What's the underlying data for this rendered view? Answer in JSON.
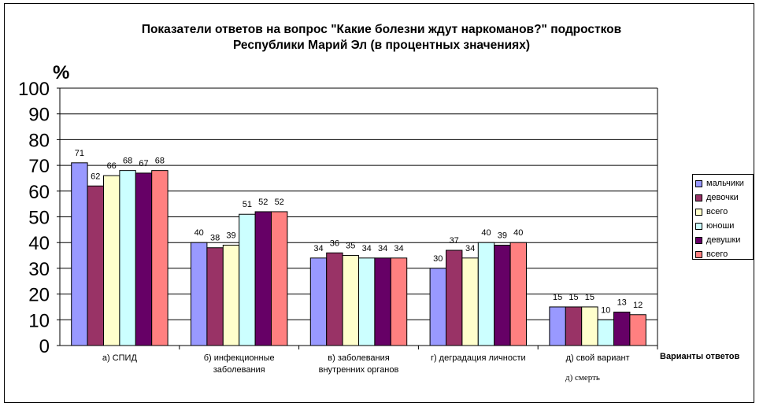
{
  "chart_data": {
    "type": "bar",
    "title_lines": [
      "Показатели ответов на вопрос \"Какие болезни ждут наркоманов?\" подростков",
      "Республики Марий Эл (в процентных значениях)"
    ],
    "ylabel": "%",
    "xlabel": "Варианты ответов",
    "ylim": [
      0,
      100
    ],
    "yticks": [
      "0",
      "10",
      "20",
      "30",
      "40",
      "50",
      "60",
      "70",
      "80",
      "90",
      "100"
    ],
    "grid": true,
    "legend_position": "right",
    "categories": [
      [
        "а) СПИД"
      ],
      [
        "б) инфекционные",
        "заболевания"
      ],
      [
        "в) заболевания",
        "внутренних органов"
      ],
      [
        "г) деградация личности"
      ],
      [
        "д) свой вариант"
      ]
    ],
    "series": [
      {
        "name": "мальчики",
        "color": "#9999FF",
        "values": [
          71,
          40,
          34,
          30,
          15
        ]
      },
      {
        "name": "девочки",
        "color": "#993366",
        "values": [
          62,
          38,
          36,
          37,
          15
        ]
      },
      {
        "name": "всего",
        "color": "#FFFFCC",
        "values": [
          66,
          39,
          35,
          34,
          15
        ]
      },
      {
        "name": "юноши",
        "color": "#CCFFFF",
        "values": [
          68,
          51,
          34,
          40,
          10
        ]
      },
      {
        "name": "девушки",
        "color": "#660066",
        "values": [
          67,
          52,
          34,
          39,
          13
        ]
      },
      {
        "name": "всего",
        "color": "#FF8080",
        "values": [
          68,
          52,
          34,
          40,
          12
        ]
      }
    ],
    "annotation": "д) смерть"
  }
}
